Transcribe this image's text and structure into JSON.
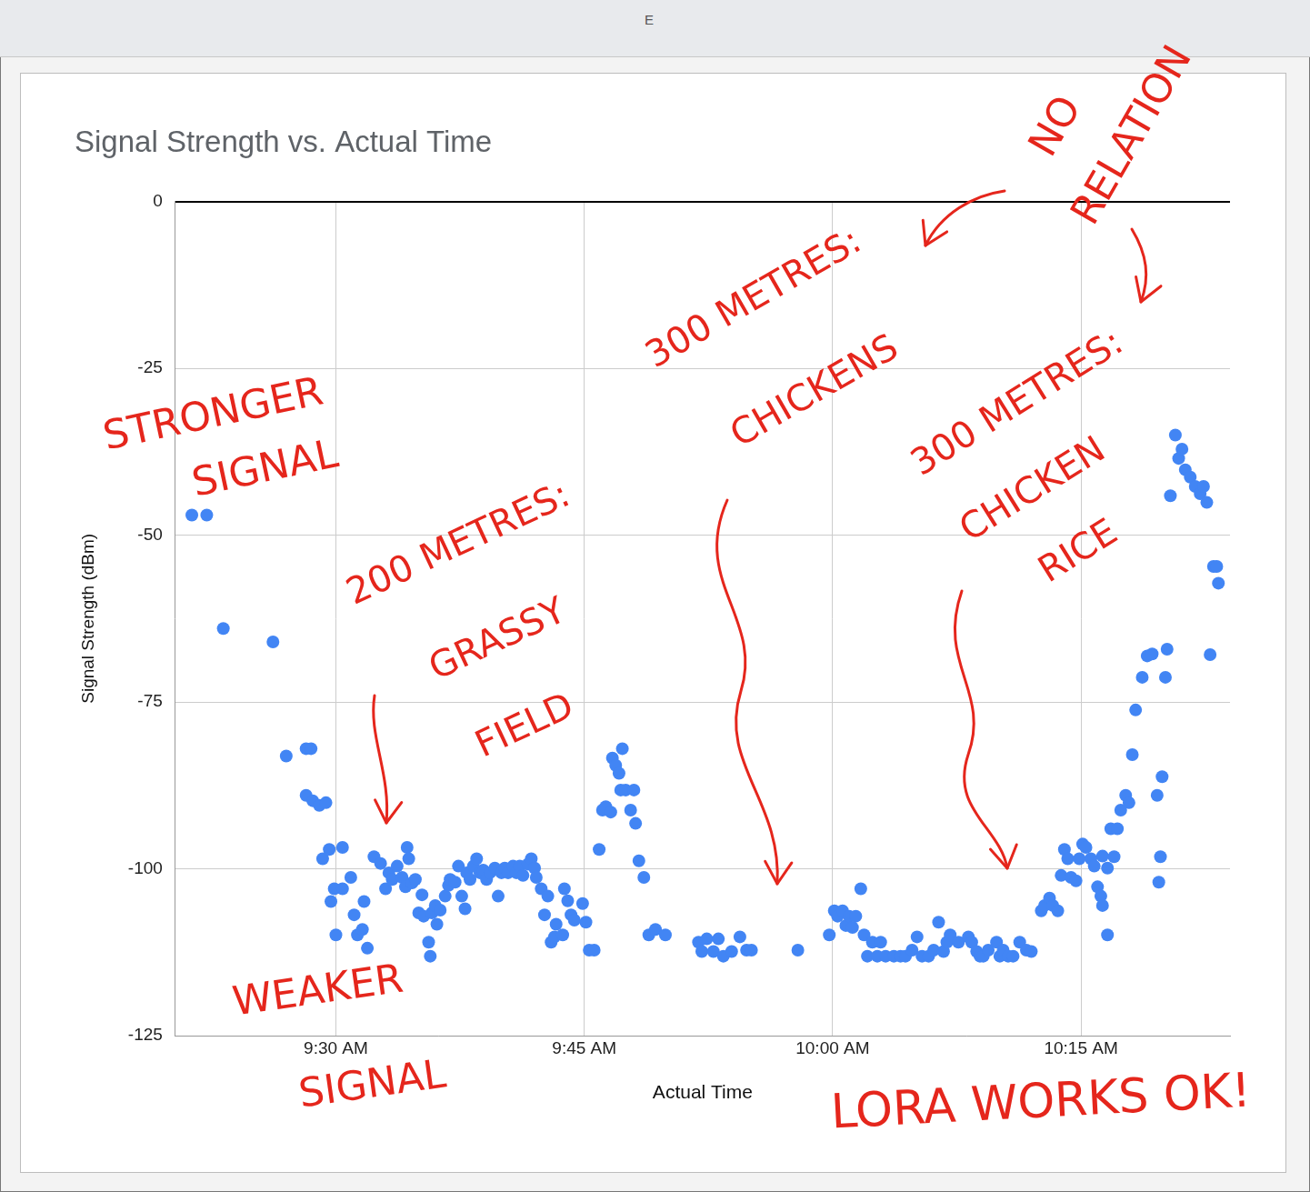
{
  "column_header": "E",
  "chart_data": {
    "type": "scatter",
    "title": "Signal Strength vs. Actual Time",
    "x_label": "Actual Time",
    "y_label": "Signal Strength (dBm)",
    "x": [
      561.3,
      562.2,
      563.2,
      566.2,
      567.0,
      568.2,
      568.5,
      568.2,
      568.6,
      569.0,
      569.4,
      569.2,
      569.6,
      569.7,
      569.9,
      570.0,
      570.4,
      570.4,
      570.9,
      571.1,
      571.3,
      571.6,
      571.7,
      571.9,
      572.3,
      572.7,
      573.0,
      573.2,
      573.4,
      573.7,
      574.0,
      574.2,
      574.3,
      574.4,
      574.6,
      574.8,
      575.0,
      575.2,
      575.3,
      575.6,
      575.7,
      575.8,
      576.0,
      576.1,
      576.3,
      576.6,
      576.8,
      576.9,
      577.2,
      577.4,
      577.6,
      577.8,
      577.9,
      578.1,
      578.3,
      578.5,
      578.7,
      578.9,
      579.1,
      579.3,
      579.6,
      579.8,
      580.0,
      580.2,
      580.4,
      580.7,
      580.9,
      581.1,
      581.3,
      581.6,
      581.8,
      582.0,
      582.1,
      582.4,
      582.6,
      582.8,
      583.0,
      583.2,
      583.3,
      583.7,
      583.8,
      584.0,
      584.2,
      584.4,
      584.9,
      585.1,
      585.3,
      585.6,
      585.9,
      586.1,
      586.3,
      586.6,
      586.7,
      586.9,
      587.1,
      587.3,
      587.2,
      587.5,
      587.8,
      588.0,
      588.1,
      588.3,
      588.6,
      588.9,
      589.3,
      589.9,
      591.9,
      592.1,
      592.4,
      592.8,
      593.1,
      593.4,
      593.9,
      594.4,
      594.8,
      595.1,
      597.9,
      599.8,
      600.1,
      600.3,
      600.6,
      600.8,
      601.0,
      601.2,
      601.4,
      601.7,
      601.9,
      602.1,
      602.4,
      602.7,
      602.9,
      603.2,
      603.7,
      604.1,
      604.4,
      604.8,
      605.1,
      605.4,
      605.8,
      606.1,
      606.4,
      606.7,
      606.9,
      607.1,
      607.6,
      608.2,
      608.4,
      608.7,
      608.9,
      609.1,
      609.4,
      609.9,
      610.1,
      610.3,
      610.6,
      610.9,
      611.3,
      611.7,
      612.0,
      612.6,
      612.8,
      613.1,
      613.3,
      613.6,
      613.8,
      614.0,
      614.2,
      614.4,
      614.7,
      614.9,
      615.1,
      615.3,
      615.6,
      615.8,
      616.0,
      616.2,
      616.3,
      616.6,
      616.3,
      616.6,
      616.8,
      617.0,
      617.2,
      617.4,
      617.7,
      617.9,
      618.1,
      618.3,
      618.7,
      619.0,
      619.3,
      619.6,
      619.7,
      619.8,
      619.9,
      620.1,
      620.2,
      620.4,
      620.7,
      620.9,
      621.1,
      621.3,
      621.6,
      621.9,
      622.2,
      622.4,
      622.6,
      622.8,
      623.0,
      623.2,
      623.3
    ],
    "values": [
      -47.0,
      -47.0,
      -64.0,
      -66.0,
      -83.1,
      -82.0,
      -82.0,
      -89.0,
      -89.8,
      -90.5,
      -90.1,
      -98.5,
      -97.1,
      -104.9,
      -103.0,
      -109.9,
      -96.8,
      -103.0,
      -101.3,
      -106.9,
      -109.9,
      -109.1,
      -104.9,
      -111.9,
      -98.2,
      -99.2,
      -103.0,
      -100.6,
      -101.6,
      -99.6,
      -101.3,
      -102.7,
      -96.8,
      -98.5,
      -102.1,
      -101.6,
      -106.6,
      -103.9,
      -107.1,
      -111.0,
      -113.1,
      -106.6,
      -105.5,
      -108.3,
      -106.2,
      -104.1,
      -102.5,
      -101.6,
      -102.0,
      -99.6,
      -104.1,
      -106.0,
      -100.6,
      -101.6,
      -99.6,
      -98.5,
      -100.6,
      -100.2,
      -101.6,
      -100.6,
      -99.9,
      -104.1,
      -100.6,
      -99.9,
      -100.6,
      -99.6,
      -100.6,
      -99.6,
      -101.0,
      -99.3,
      -98.5,
      -99.9,
      -101.3,
      -103.0,
      -106.9,
      -104.1,
      -111.0,
      -110.2,
      -108.3,
      -109.9,
      -103.0,
      -104.8,
      -106.9,
      -107.7,
      -105.2,
      -108.0,
      -112.2,
      -112.2,
      -97.1,
      -91.2,
      -90.7,
      -91.5,
      -83.4,
      -84.5,
      -85.7,
      -82.0,
      -88.2,
      -88.2,
      -91.2,
      -88.2,
      -93.2,
      -98.8,
      -101.3,
      -109.9,
      -109.1,
      -109.9,
      -111.0,
      -112.4,
      -110.5,
      -112.4,
      -110.5,
      -113.1,
      -112.4,
      -110.2,
      -112.2,
      -112.2,
      -112.2,
      -109.9,
      -106.3,
      -107.1,
      -106.3,
      -108.5,
      -107.1,
      -108.8,
      -107.1,
      -103.0,
      -109.9,
      -113.1,
      -111.0,
      -113.1,
      -111.0,
      -113.1,
      -113.1,
      -113.1,
      -113.1,
      -112.2,
      -110.2,
      -113.1,
      -113.1,
      -112.2,
      -108.0,
      -112.4,
      -111.0,
      -109.9,
      -111.0,
      -110.2,
      -111.0,
      -112.4,
      -113.1,
      -113.1,
      -112.2,
      -111.0,
      -113.1,
      -112.2,
      -113.1,
      -113.1,
      -111.0,
      -112.2,
      -112.4,
      -106.3,
      -105.5,
      -104.4,
      -105.5,
      -106.3,
      -101.0,
      -97.1,
      -98.5,
      -101.3,
      -101.8,
      -98.5,
      -96.3,
      -96.8,
      -98.5,
      -99.6,
      -102.7,
      -104.1,
      -105.5,
      -109.9,
      -98.1,
      -99.9,
      -94.0,
      -98.2,
      -94.0,
      -91.2,
      -89.0,
      -90.1,
      -82.9,
      -76.2,
      -71.3,
      -68.1,
      -67.8,
      -89.0,
      -102.0,
      -98.2,
      -86.2,
      -71.3,
      -67.1,
      -44.1,
      -35.0,
      -38.5,
      -37.1,
      -40.2,
      -41.3,
      -42.7,
      -43.8,
      -42.7,
      -45.1,
      -67.9,
      -54.7,
      -54.7,
      -57.2
    ],
    "color": "#4285f4",
    "marker": "circle",
    "xlim": [
      560.3,
      624.0
    ],
    "xticks": [
      {
        "value": 570,
        "label": "9:30 AM"
      },
      {
        "value": 585,
        "label": "9:45 AM"
      },
      {
        "value": 600,
        "label": "10:00 AM"
      },
      {
        "value": 615,
        "label": "10:15 AM"
      }
    ],
    "ylim": [
      -125,
      0
    ],
    "yticks": [
      -125,
      -100,
      -75,
      -50,
      -25,
      0
    ],
    "grid": true,
    "legend": false,
    "annotations": [
      "STRONGER SIGNAL",
      "WEAKER SIGNAL",
      "200 METRES: GRASSY FIELD",
      "300 METRES: CHICKENS",
      "300 METRES: CHICKEN RICE",
      "NO RELATION",
      "LORA WORKS OK!"
    ]
  }
}
